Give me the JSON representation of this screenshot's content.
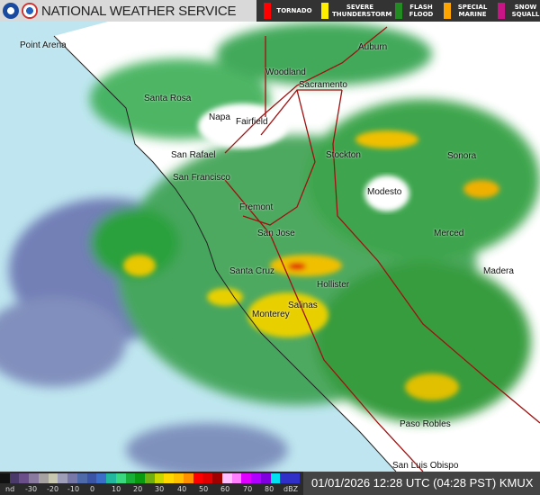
{
  "header": {
    "title": "NATIONAL WEATHER SERVICE",
    "logos": [
      "noaa-logo",
      "nws-logo"
    ]
  },
  "warnings": [
    {
      "label": "TORNADO",
      "color": "#ff0000"
    },
    {
      "label": "SEVERE THUNDERSTORM",
      "color": "#ffee00"
    },
    {
      "label": "FLASH FLOOD",
      "color": "#228b22"
    },
    {
      "label": "SPECIAL MARINE",
      "color": "#ffa500"
    },
    {
      "label": "SNOW SQUALL",
      "color": "#c71585"
    }
  ],
  "legend": {
    "ticks": [
      "nd",
      "-30",
      "-20",
      "-10",
      "0",
      "10",
      "20",
      "30",
      "40",
      "50",
      "60",
      "70",
      "80",
      "dBZ"
    ],
    "colors": [
      "#111111",
      "#4a3a6a",
      "#6a4f8a",
      "#8a7aa0",
      "#a6a2a2",
      "#c8c8b0",
      "#9e9eb8",
      "#7878a8",
      "#4f6aa8",
      "#3a55a6",
      "#3a6ec8",
      "#22b8a0",
      "#3ad880",
      "#18b038",
      "#0a9a10",
      "#70b010",
      "#c8d800",
      "#ffd800",
      "#ffc000",
      "#ff9000",
      "#ff0000",
      "#e00000",
      "#a00000",
      "#ffc0ff",
      "#ff80ff",
      "#e000ff",
      "#b000ff",
      "#8000e0",
      "#00e0f0",
      "#3030c8",
      "#3030c8"
    ]
  },
  "timestamp": "01/01/2026 12:28 UTC (04:28 PST) KMUX",
  "cities": [
    "Point Arena",
    "Auburn",
    "Woodland",
    "Sacramento",
    "Santa Rosa",
    "Napa",
    "Fairfield",
    "San Rafael",
    "Stockton",
    "Sonora",
    "San Francisco",
    "Modesto",
    "Fremont",
    "San Jose",
    "Merced",
    "Madera",
    "Santa Cruz",
    "Hollister",
    "Salinas",
    "Monterey",
    "Paso Robles",
    "San Luis Obispo"
  ]
}
